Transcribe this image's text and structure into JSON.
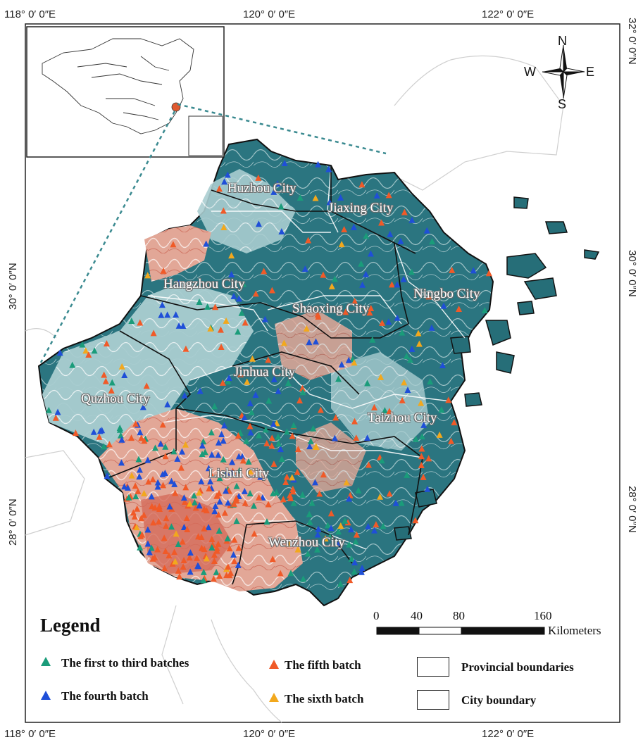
{
  "coordinates": {
    "top": [
      "118° 0′ 0″E",
      "120° 0′ 0″E",
      "122° 0′ 0″E"
    ],
    "bottom": [
      "118° 0′ 0″E",
      "120° 0′ 0″E",
      "122° 0′ 0″E"
    ],
    "left": [
      "30° 0′ 0″N",
      "28° 0′ 0″N"
    ],
    "right": [
      "32° 0′ 0″N",
      "30° 0′ 0″N",
      "28° 0′ 0″N"
    ]
  },
  "compass": {
    "n": "N",
    "s": "S",
    "e": "E",
    "w": "W"
  },
  "cities": {
    "huzhou": "Huzhou City",
    "jiaxing": "Jiaxing City",
    "hangzhou": "Hangzhou City",
    "shaoxing": "Shaoxing City",
    "ningbo": "Ningbo City",
    "jinhua": "Jinhua City",
    "quzhou": "Quzhou City",
    "taizhou": "Taizhou City",
    "lishui": "Lishui City",
    "wenzhou": "Wenzhou City"
  },
  "scale_bar": {
    "ticks": [
      "0",
      "40",
      "80",
      "160"
    ],
    "unit": "Kilometers"
  },
  "legend": {
    "title": "Legend",
    "items": [
      {
        "label": "The first to third batches",
        "color": "#1a9c7a"
      },
      {
        "label": "The fourth batch",
        "color": "#1f4fd8"
      },
      {
        "label": "The fifth batch",
        "color": "#f05a28"
      },
      {
        "label": "The sixth batch",
        "color": "#f2a81d"
      }
    ],
    "boundaries": [
      "Provincial boundaries",
      "City boundary"
    ]
  },
  "colors": {
    "lowland": "#266e78",
    "mid": "#9cc6c8",
    "high": "#e4a596",
    "peak": "#d46b5a"
  }
}
